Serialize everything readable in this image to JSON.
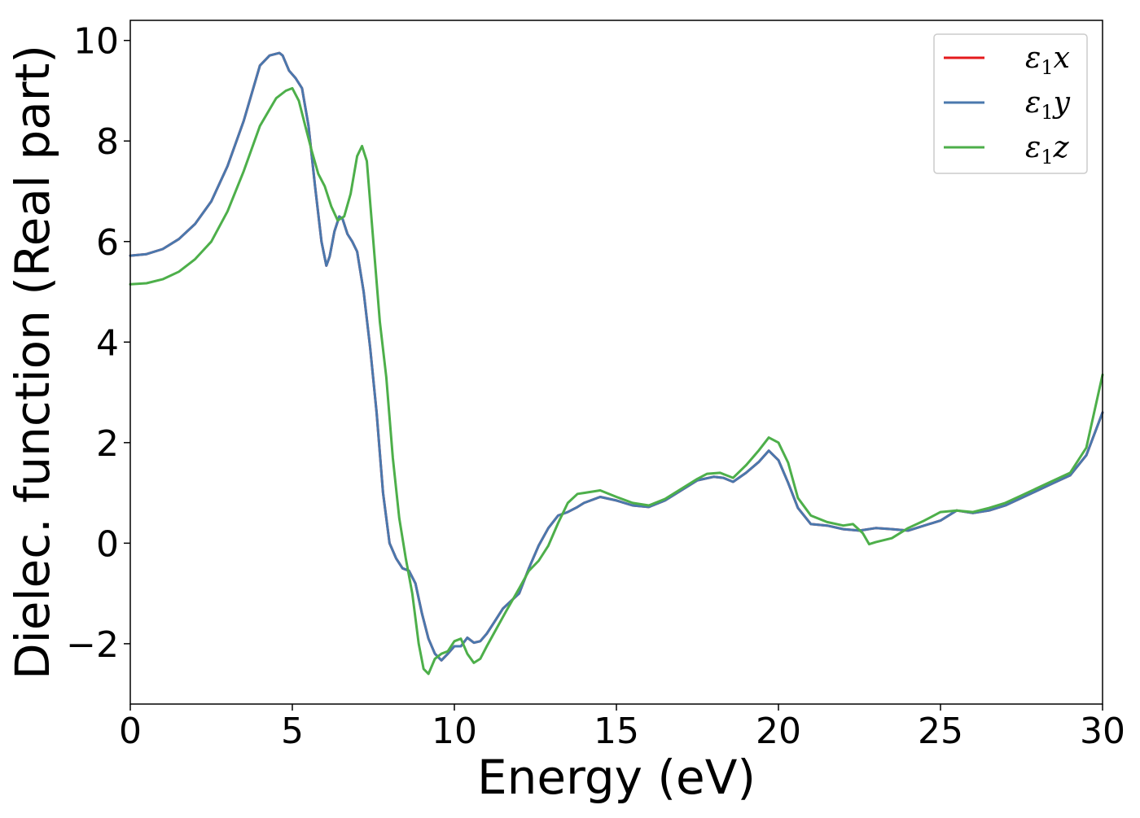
{
  "chart_data": {
    "type": "line",
    "xlabel": "Energy (eV)",
    "ylabel": "Dielec. function (Real part)",
    "xlim": [
      0,
      30
    ],
    "ylim": [
      -3.2,
      10.4
    ],
    "xticks": [
      0,
      5,
      10,
      15,
      20,
      25,
      30
    ],
    "xtick_labels": [
      "0",
      "5",
      "10",
      "15",
      "20",
      "25",
      "30"
    ],
    "yticks": [
      -2,
      0,
      2,
      4,
      6,
      8,
      10
    ],
    "ytick_labels": [
      "−2",
      "0",
      "2",
      "4",
      "6",
      "8",
      "10"
    ],
    "grid": false,
    "legend_position": "top-right",
    "series": [
      {
        "name": "ε1x",
        "legend": {
          "symbol": "ε",
          "sub": "1",
          "var": "x"
        },
        "color": "#e41a1c",
        "x": [
          0,
          0.5,
          1,
          1.5,
          2,
          2.5,
          3,
          3.5,
          4,
          4.3,
          4.6,
          4.7,
          4.9,
          5.1,
          5.3,
          5.5,
          5.7,
          5.9,
          6.05,
          6.15,
          6.3,
          6.45,
          6.55,
          6.7,
          6.85,
          7.0,
          7.2,
          7.4,
          7.6,
          7.8,
          8.0,
          8.2,
          8.4,
          8.6,
          8.8,
          9.0,
          9.2,
          9.4,
          9.6,
          9.8,
          10.0,
          10.2,
          10.4,
          10.6,
          10.8,
          11.0,
          11.2,
          11.5,
          11.8,
          12.0,
          12.3,
          12.6,
          12.9,
          13.2,
          13.5,
          13.8,
          14.0,
          14.5,
          15.0,
          15.5,
          16.0,
          16.5,
          17.0,
          17.5,
          18.0,
          18.3,
          18.6,
          19.0,
          19.4,
          19.7,
          20.0,
          20.3,
          20.6,
          21.0,
          21.5,
          22.0,
          22.5,
          23.0,
          23.5,
          24.0,
          24.5,
          25.0,
          25.5,
          26.0,
          26.5,
          27.0,
          27.5,
          28.0,
          28.5,
          29.0,
          29.5,
          30.0
        ],
        "y": [
          5.72,
          5.75,
          5.85,
          6.05,
          6.35,
          6.8,
          7.5,
          8.4,
          9.5,
          9.7,
          9.75,
          9.7,
          9.4,
          9.25,
          9.05,
          8.3,
          7.1,
          6.0,
          5.52,
          5.7,
          6.2,
          6.5,
          6.45,
          6.15,
          6.0,
          5.8,
          5.0,
          3.9,
          2.6,
          1.0,
          0.0,
          -0.3,
          -0.5,
          -0.55,
          -0.8,
          -1.4,
          -1.9,
          -2.2,
          -2.33,
          -2.2,
          -2.05,
          -2.05,
          -1.88,
          -1.98,
          -1.95,
          -1.8,
          -1.6,
          -1.3,
          -1.12,
          -1.0,
          -0.5,
          -0.05,
          0.3,
          0.55,
          0.62,
          0.72,
          0.8,
          0.92,
          0.85,
          0.75,
          0.72,
          0.85,
          1.05,
          1.25,
          1.32,
          1.3,
          1.22,
          1.4,
          1.62,
          1.84,
          1.65,
          1.2,
          0.7,
          0.38,
          0.35,
          0.28,
          0.25,
          0.3,
          0.28,
          0.25,
          0.35,
          0.45,
          0.65,
          0.6,
          0.65,
          0.75,
          0.9,
          1.05,
          1.2,
          1.35,
          1.75,
          2.6
        ]
      },
      {
        "name": "ε1y",
        "legend": {
          "symbol": "ε",
          "sub": "1",
          "var": "y"
        },
        "color": "#4a78ad",
        "x": [
          0,
          0.5,
          1,
          1.5,
          2,
          2.5,
          3,
          3.5,
          4,
          4.3,
          4.6,
          4.7,
          4.9,
          5.1,
          5.3,
          5.5,
          5.7,
          5.9,
          6.05,
          6.15,
          6.3,
          6.45,
          6.55,
          6.7,
          6.85,
          7.0,
          7.2,
          7.4,
          7.6,
          7.8,
          8.0,
          8.2,
          8.4,
          8.6,
          8.8,
          9.0,
          9.2,
          9.4,
          9.6,
          9.8,
          10.0,
          10.2,
          10.4,
          10.6,
          10.8,
          11.0,
          11.2,
          11.5,
          11.8,
          12.0,
          12.3,
          12.6,
          12.9,
          13.2,
          13.5,
          13.8,
          14.0,
          14.5,
          15.0,
          15.5,
          16.0,
          16.5,
          17.0,
          17.5,
          18.0,
          18.3,
          18.6,
          19.0,
          19.4,
          19.7,
          20.0,
          20.3,
          20.6,
          21.0,
          21.5,
          22.0,
          22.5,
          23.0,
          23.5,
          24.0,
          24.5,
          25.0,
          25.5,
          26.0,
          26.5,
          27.0,
          27.5,
          28.0,
          28.5,
          29.0,
          29.5,
          30.0
        ],
        "y": [
          5.72,
          5.75,
          5.85,
          6.05,
          6.35,
          6.8,
          7.5,
          8.4,
          9.5,
          9.7,
          9.75,
          9.7,
          9.4,
          9.25,
          9.05,
          8.3,
          7.1,
          6.0,
          5.52,
          5.7,
          6.2,
          6.5,
          6.45,
          6.15,
          6.0,
          5.8,
          5.0,
          3.9,
          2.6,
          1.0,
          0.0,
          -0.3,
          -0.5,
          -0.55,
          -0.8,
          -1.4,
          -1.9,
          -2.2,
          -2.33,
          -2.2,
          -2.05,
          -2.05,
          -1.88,
          -1.98,
          -1.95,
          -1.8,
          -1.6,
          -1.3,
          -1.12,
          -1.0,
          -0.5,
          -0.05,
          0.3,
          0.55,
          0.62,
          0.72,
          0.8,
          0.92,
          0.85,
          0.75,
          0.72,
          0.85,
          1.05,
          1.25,
          1.32,
          1.3,
          1.22,
          1.4,
          1.62,
          1.84,
          1.65,
          1.2,
          0.7,
          0.38,
          0.35,
          0.28,
          0.25,
          0.3,
          0.28,
          0.25,
          0.35,
          0.45,
          0.65,
          0.6,
          0.65,
          0.75,
          0.9,
          1.05,
          1.2,
          1.35,
          1.75,
          2.6
        ]
      },
      {
        "name": "ε1z",
        "legend": {
          "symbol": "ε",
          "sub": "1",
          "var": "z"
        },
        "color": "#4daf4a",
        "x": [
          0,
          0.5,
          1,
          1.5,
          2,
          2.5,
          3,
          3.5,
          4,
          4.5,
          4.8,
          5.0,
          5.2,
          5.4,
          5.6,
          5.8,
          6.0,
          6.2,
          6.4,
          6.6,
          6.8,
          7.0,
          7.15,
          7.3,
          7.5,
          7.7,
          7.9,
          8.1,
          8.3,
          8.5,
          8.7,
          8.9,
          9.05,
          9.2,
          9.4,
          9.6,
          9.8,
          10.0,
          10.2,
          10.4,
          10.6,
          10.8,
          11.0,
          11.3,
          11.6,
          12.0,
          12.3,
          12.6,
          12.9,
          13.2,
          13.5,
          13.8,
          14.0,
          14.5,
          15.0,
          15.5,
          16.0,
          16.5,
          17.0,
          17.5,
          17.8,
          18.2,
          18.6,
          19.0,
          19.4,
          19.7,
          20.0,
          20.3,
          20.6,
          21.0,
          21.5,
          22.0,
          22.3,
          22.6,
          22.8,
          23.0,
          23.5,
          24.0,
          24.5,
          25.0,
          25.5,
          26.0,
          26.5,
          27.0,
          27.5,
          28.0,
          28.5,
          29.0,
          29.5,
          30.0
        ],
        "y": [
          5.15,
          5.17,
          5.25,
          5.4,
          5.65,
          6.0,
          6.6,
          7.4,
          8.3,
          8.85,
          9.0,
          9.05,
          8.8,
          8.3,
          7.8,
          7.35,
          7.1,
          6.7,
          6.42,
          6.5,
          6.95,
          7.7,
          7.9,
          7.6,
          6.0,
          4.4,
          3.3,
          1.7,
          0.5,
          -0.3,
          -1.0,
          -2.0,
          -2.5,
          -2.6,
          -2.3,
          -2.2,
          -2.15,
          -1.95,
          -1.9,
          -2.2,
          -2.38,
          -2.3,
          -2.05,
          -1.7,
          -1.35,
          -0.9,
          -0.55,
          -0.35,
          -0.05,
          0.4,
          0.8,
          0.98,
          1.0,
          1.05,
          0.92,
          0.8,
          0.75,
          0.88,
          1.08,
          1.28,
          1.38,
          1.4,
          1.3,
          1.55,
          1.85,
          2.1,
          2.0,
          1.6,
          0.9,
          0.55,
          0.42,
          0.35,
          0.38,
          0.2,
          -0.02,
          0.02,
          0.1,
          0.3,
          0.45,
          0.62,
          0.65,
          0.62,
          0.7,
          0.8,
          0.95,
          1.1,
          1.25,
          1.4,
          1.9,
          3.35
        ]
      }
    ]
  }
}
